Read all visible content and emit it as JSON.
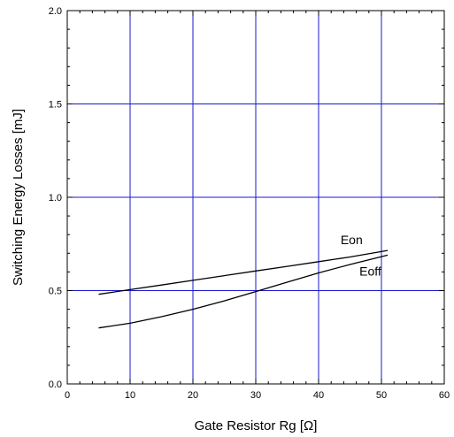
{
  "chart_data": {
    "type": "line",
    "xlabel": "Gate Resistor Rg [Ω]",
    "ylabel": "Switching Energy Losses [mJ]",
    "xlim": [
      0,
      60
    ],
    "ylim": [
      0.0,
      2.0
    ],
    "x_ticks": [
      0,
      10,
      20,
      30,
      40,
      50,
      60
    ],
    "y_ticks": [
      0.0,
      0.5,
      1.0,
      1.5,
      2.0
    ],
    "x_tick_labels": [
      "0",
      "10",
      "20",
      "30",
      "40",
      "50",
      "60"
    ],
    "y_tick_labels": [
      "0.0",
      "0.5",
      "1.0",
      "1.5",
      "2.0"
    ],
    "grid": true,
    "grid_color": "#1a1acc",
    "series": [
      {
        "name": "Eon",
        "color": "#000000",
        "x": [
          5,
          10,
          15,
          20,
          25,
          30,
          35,
          40,
          45,
          51
        ],
        "y": [
          0.48,
          0.505,
          0.53,
          0.555,
          0.58,
          0.605,
          0.63,
          0.655,
          0.68,
          0.715
        ]
      },
      {
        "name": "Eoff",
        "color": "#000000",
        "x": [
          5,
          10,
          15,
          20,
          25,
          30,
          35,
          40,
          45,
          51
        ],
        "y": [
          0.3,
          0.325,
          0.36,
          0.4,
          0.445,
          0.495,
          0.545,
          0.595,
          0.64,
          0.69
        ]
      }
    ]
  }
}
